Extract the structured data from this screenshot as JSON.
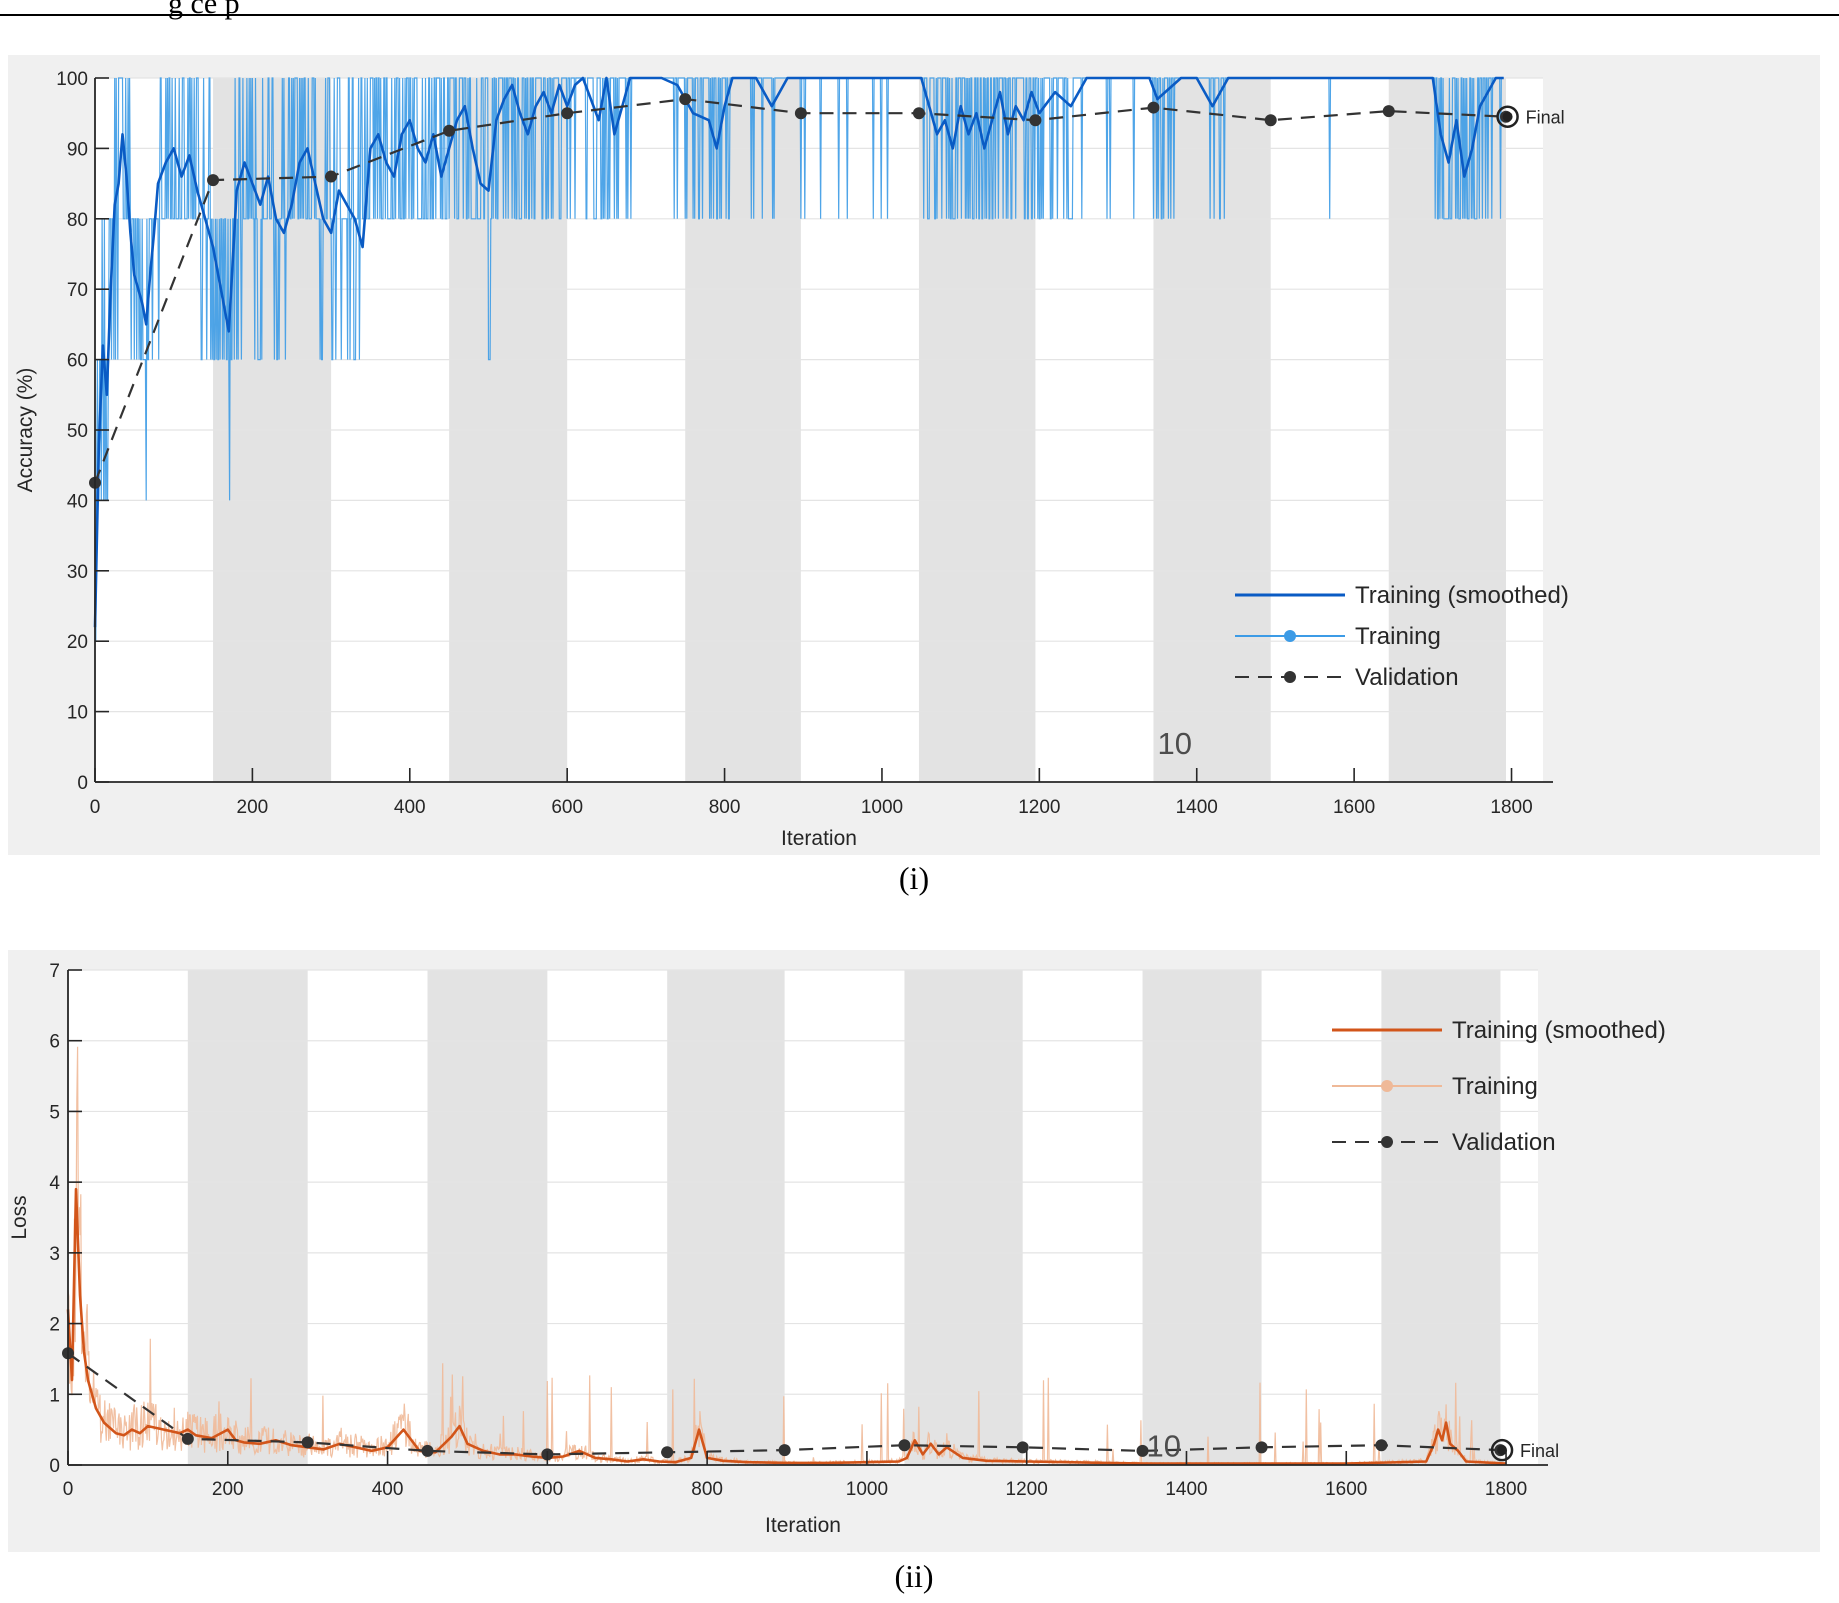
{
  "header_text": "g  ce  p",
  "colors": {
    "acc_smoothed": "#0a5bc4",
    "acc_raw": "#3c9be6",
    "loss_smoothed": "#d2551a",
    "loss_raw": "#efb998",
    "validation": "#333333",
    "epoch_band": "#e3e3e3",
    "panel_bg": "#f0f0f0",
    "grid": "#e4e4e4"
  },
  "chart_data": [
    {
      "type": "line",
      "caption": "(i)",
      "xlabel": "Iteration",
      "ylabel": "Accuracy (%)",
      "xlim": [
        0,
        1840
      ],
      "ylim": [
        0,
        100
      ],
      "xticks": [
        0,
        200,
        400,
        600,
        800,
        1000,
        1200,
        1400,
        1600,
        1800
      ],
      "yticks": [
        0,
        10,
        20,
        30,
        40,
        50,
        60,
        70,
        80,
        90,
        100
      ],
      "grid": true,
      "legend_position": "lower-right",
      "epoch_bands": [
        [
          150,
          300
        ],
        [
          450,
          600
        ],
        [
          750,
          897
        ],
        [
          1047,
          1195
        ],
        [
          1345,
          1494
        ],
        [
          1644,
          1793
        ]
      ],
      "epoch_label": "10",
      "epoch_label_x": 1345,
      "epoch_label_y": 4,
      "final_label": "Final",
      "final_x": 1795,
      "final_y": 94.5,
      "legend": [
        "Training (smoothed)",
        "Training",
        "Validation"
      ],
      "series": [
        {
          "name": "Validation",
          "style": "dashed-markers",
          "x": [
            0,
            150,
            300,
            450,
            600,
            750,
            897,
            1047,
            1195,
            1345,
            1494,
            1644,
            1793
          ],
          "y": [
            42.5,
            85.5,
            86,
            92.5,
            95,
            97,
            95,
            95,
            94,
            95.8,
            94,
            95.3,
            94.5
          ]
        },
        {
          "name": "Training (smoothed)",
          "style": "line",
          "x": [
            0,
            5,
            10,
            15,
            20,
            25,
            30,
            35,
            40,
            45,
            50,
            55,
            60,
            65,
            70,
            75,
            80,
            90,
            100,
            110,
            120,
            130,
            140,
            150,
            160,
            170,
            180,
            190,
            200,
            210,
            220,
            230,
            240,
            250,
            260,
            270,
            280,
            290,
            300,
            310,
            320,
            330,
            340,
            350,
            360,
            370,
            380,
            390,
            400,
            410,
            420,
            430,
            440,
            450,
            460,
            470,
            480,
            490,
            500,
            510,
            520,
            530,
            540,
            550,
            560,
            570,
            580,
            590,
            600,
            610,
            620,
            630,
            640,
            650,
            660,
            670,
            680,
            690,
            700,
            720,
            740,
            760,
            780,
            790,
            800,
            810,
            820,
            840,
            860,
            880,
            900,
            950,
            1000,
            1050,
            1060,
            1070,
            1080,
            1090,
            1100,
            1110,
            1120,
            1130,
            1140,
            1150,
            1160,
            1170,
            1180,
            1190,
            1200,
            1220,
            1240,
            1260,
            1280,
            1300,
            1340,
            1350,
            1380,
            1400,
            1420,
            1440,
            1480,
            1550,
            1650,
            1700,
            1710,
            1720,
            1730,
            1740,
            1750,
            1760,
            1780,
            1790
          ],
          "y": [
            22,
            48,
            62,
            55,
            70,
            82,
            85,
            92,
            86,
            78,
            72,
            70,
            68,
            65,
            72,
            78,
            85,
            88,
            90,
            86,
            89,
            84,
            80,
            76,
            70,
            64,
            84,
            88,
            85,
            82,
            86,
            80,
            78,
            82,
            88,
            90,
            85,
            80,
            78,
            84,
            82,
            80,
            76,
            90,
            92,
            88,
            86,
            92,
            94,
            90,
            88,
            92,
            86,
            90,
            94,
            96,
            90,
            85,
            84,
            94,
            97,
            99,
            95,
            92,
            96,
            98,
            95,
            99,
            96,
            99,
            100,
            97,
            94,
            100,
            92,
            96,
            100,
            100,
            100,
            100,
            99,
            95,
            94,
            90,
            96,
            100,
            100,
            100,
            96,
            100,
            100,
            100,
            100,
            100,
            96,
            92,
            94,
            90,
            96,
            92,
            95,
            90,
            94,
            98,
            92,
            96,
            94,
            98,
            95,
            98,
            96,
            100,
            100,
            100,
            100,
            97,
            100,
            100,
            96,
            100,
            100,
            100,
            100,
            100,
            92,
            88,
            94,
            86,
            90,
            96,
            100,
            100
          ]
        }
      ]
    },
    {
      "type": "line",
      "caption": "(ii)",
      "xlabel": "Iteration",
      "ylabel": "Loss",
      "xlim": [
        0,
        1840
      ],
      "ylim": [
        0,
        7
      ],
      "xticks": [
        0,
        200,
        400,
        600,
        800,
        1000,
        1200,
        1400,
        1600,
        1800
      ],
      "yticks": [
        0,
        1,
        2,
        3,
        4,
        5,
        6,
        7
      ],
      "grid": true,
      "legend_position": "top-right",
      "epoch_bands": [
        [
          150,
          300
        ],
        [
          450,
          600
        ],
        [
          750,
          897
        ],
        [
          1047,
          1195
        ],
        [
          1345,
          1494
        ],
        [
          1644,
          1793
        ]
      ],
      "epoch_label": "10",
      "epoch_label_x": 1345,
      "epoch_label_y": 0.12,
      "final_label": "Final",
      "final_x": 1795,
      "final_y": 0.21,
      "legend": [
        "Training (smoothed)",
        "Training",
        "Validation"
      ],
      "series": [
        {
          "name": "Validation",
          "style": "dashed-markers",
          "x": [
            0,
            150,
            300,
            450,
            600,
            750,
            897,
            1047,
            1195,
            1345,
            1494,
            1644,
            1793
          ],
          "y": [
            1.58,
            0.37,
            0.32,
            0.2,
            0.15,
            0.18,
            0.21,
            0.28,
            0.25,
            0.2,
            0.25,
            0.28,
            0.21
          ]
        },
        {
          "name": "Training (smoothed)",
          "style": "line",
          "x": [
            0,
            5,
            10,
            15,
            20,
            25,
            30,
            35,
            40,
            45,
            50,
            55,
            60,
            70,
            80,
            90,
            100,
            120,
            140,
            150,
            160,
            180,
            200,
            210,
            220,
            240,
            260,
            280,
            300,
            320,
            340,
            360,
            380,
            400,
            420,
            440,
            460,
            480,
            490,
            500,
            520,
            540,
            560,
            580,
            600,
            620,
            640,
            660,
            680,
            700,
            720,
            740,
            760,
            780,
            790,
            800,
            820,
            850,
            900,
            950,
            1000,
            1040,
            1050,
            1060,
            1070,
            1080,
            1090,
            1100,
            1120,
            1150,
            1200,
            1250,
            1300,
            1350,
            1400,
            1450,
            1500,
            1600,
            1700,
            1710,
            1715,
            1720,
            1725,
            1730,
            1740,
            1750,
            1800
          ],
          "y": [
            2.2,
            1.2,
            3.9,
            2.4,
            1.6,
            1.2,
            1.0,
            0.8,
            0.7,
            0.6,
            0.55,
            0.5,
            0.45,
            0.42,
            0.5,
            0.45,
            0.55,
            0.5,
            0.45,
            0.5,
            0.42,
            0.38,
            0.5,
            0.35,
            0.32,
            0.3,
            0.35,
            0.28,
            0.25,
            0.22,
            0.3,
            0.25,
            0.2,
            0.25,
            0.5,
            0.2,
            0.18,
            0.4,
            0.55,
            0.3,
            0.2,
            0.15,
            0.15,
            0.12,
            0.1,
            0.12,
            0.2,
            0.1,
            0.08,
            0.05,
            0.08,
            0.05,
            0.04,
            0.1,
            0.5,
            0.1,
            0.06,
            0.04,
            0.03,
            0.03,
            0.04,
            0.05,
            0.1,
            0.35,
            0.15,
            0.3,
            0.15,
            0.25,
            0.1,
            0.06,
            0.05,
            0.04,
            0.03,
            0.02,
            0.02,
            0.02,
            0.02,
            0.02,
            0.05,
            0.3,
            0.5,
            0.35,
            0.6,
            0.3,
            0.2,
            0.05,
            0.02
          ]
        }
      ]
    }
  ]
}
